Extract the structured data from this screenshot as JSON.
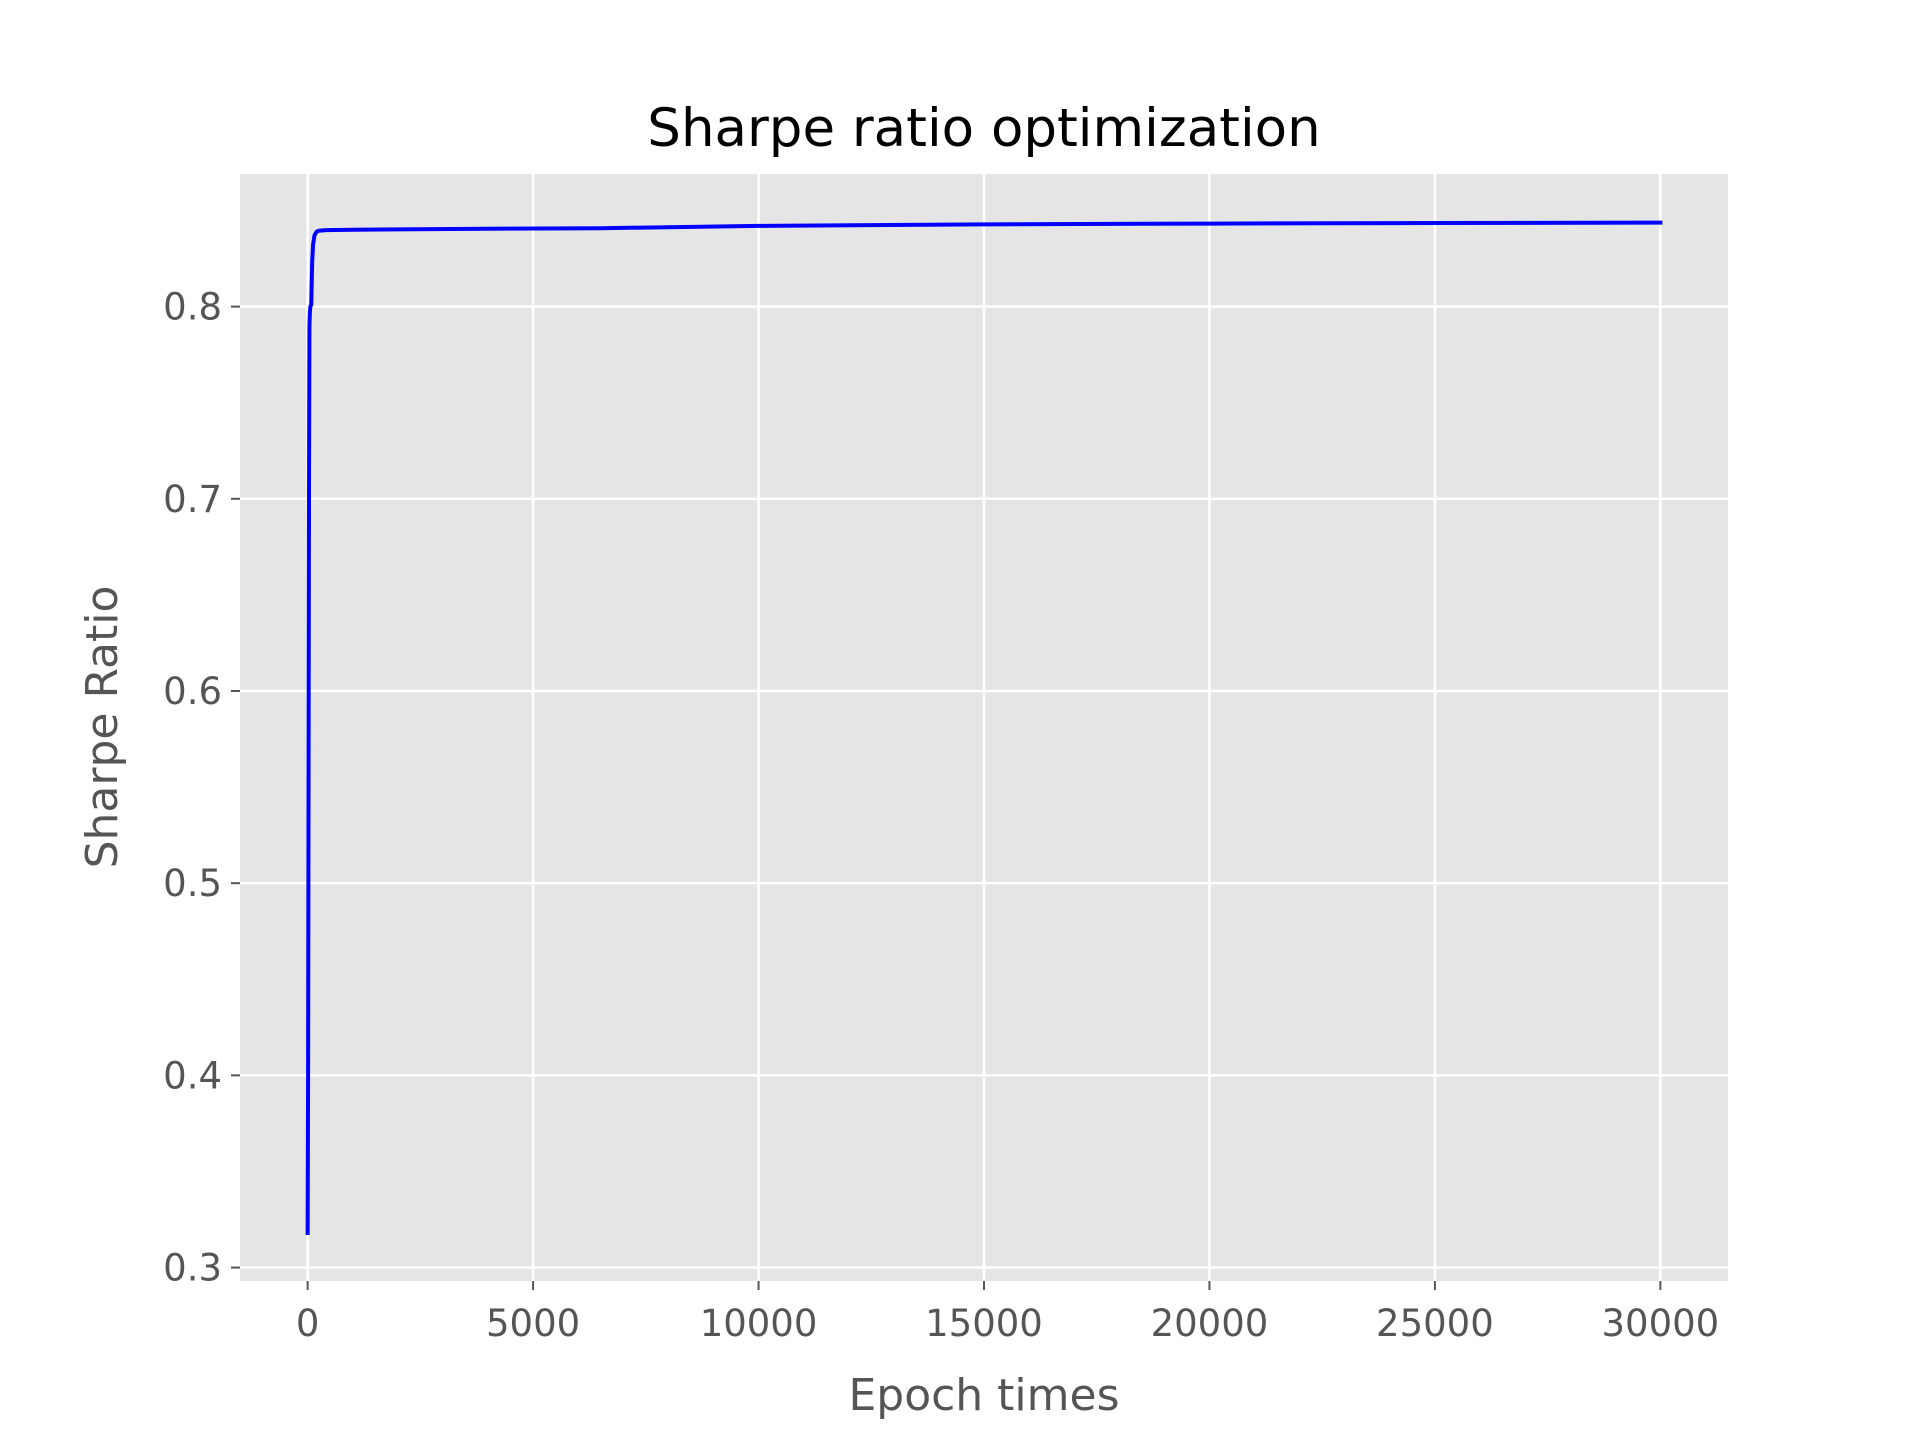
{
  "chart_data": {
    "type": "line",
    "title": "Sharpe ratio optimization",
    "xlabel": "Epoch times",
    "ylabel": "Sharpe Ratio",
    "xlim": [
      -1500,
      31500
    ],
    "ylim": [
      0.293,
      0.869
    ],
    "x_ticks": [
      0,
      5000,
      10000,
      15000,
      20000,
      25000,
      30000
    ],
    "x_tick_labels": [
      "0",
      "5000",
      "10000",
      "15000",
      "20000",
      "25000",
      "30000"
    ],
    "y_ticks": [
      0.3,
      0.4,
      0.5,
      0.6,
      0.7,
      0.8
    ],
    "y_tick_labels": [
      "0.3",
      "0.4",
      "0.5",
      "0.6",
      "0.7",
      "0.8"
    ],
    "grid": true,
    "background": "#e5e5e5",
    "grid_color": "#ffffff",
    "series": [
      {
        "color": "#0000ff",
        "x": [
          0,
          10,
          20,
          30,
          40,
          50,
          60,
          80,
          100,
          120,
          150,
          200,
          250,
          400,
          1000,
          2000,
          4000,
          6500,
          10000,
          15000,
          20000,
          25000,
          30000
        ],
        "y": [
          0.318,
          0.4,
          0.55,
          0.7,
          0.79,
          0.797,
          0.8,
          0.801,
          0.823,
          0.832,
          0.837,
          0.839,
          0.8395,
          0.8398,
          0.84,
          0.8402,
          0.8405,
          0.8408,
          0.842,
          0.8428,
          0.8432,
          0.8435,
          0.8437
        ]
      }
    ]
  }
}
